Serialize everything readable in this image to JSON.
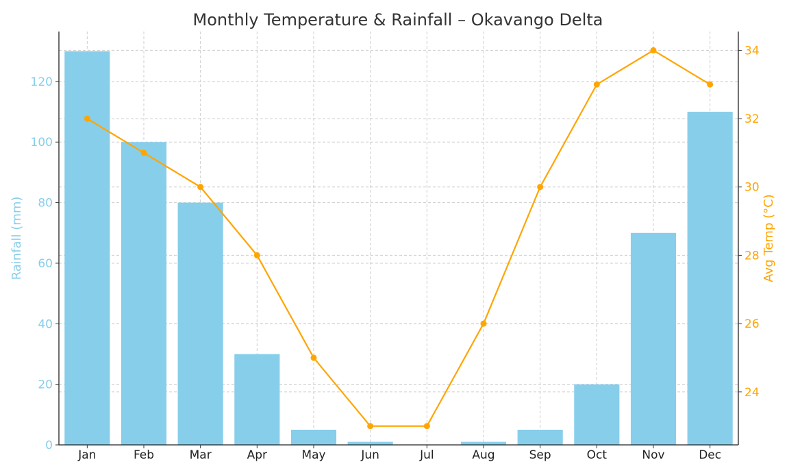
{
  "chart_data": {
    "type": "bar+line",
    "title": "Monthly Temperature & Rainfall – Okavango Delta",
    "categories": [
      "Jan",
      "Feb",
      "Mar",
      "Apr",
      "May",
      "Jun",
      "Jul",
      "Aug",
      "Sep",
      "Oct",
      "Nov",
      "Dec"
    ],
    "series": [
      {
        "name": "Rainfall (mm)",
        "type": "bar",
        "axis": "left",
        "color": "#87CEEB",
        "values": [
          130,
          100,
          80,
          30,
          5,
          1,
          0,
          1,
          5,
          20,
          70,
          110
        ]
      },
      {
        "name": "Avg Temp (°C)",
        "type": "line",
        "axis": "right",
        "color": "#FFA500",
        "values": [
          32,
          31,
          30,
          28,
          25,
          23,
          23,
          26,
          30,
          33,
          34,
          33
        ]
      }
    ],
    "ylabel_left": "Rainfall (mm)",
    "ylabel_right": "Avg Temp (°C)",
    "ylim_left": [
      0,
      136.5
    ],
    "yticks_left": [
      0,
      20,
      40,
      60,
      80,
      100,
      120
    ],
    "ylim_right": [
      22.45,
      34.55
    ],
    "yticks_right": [
      24,
      26,
      28,
      30,
      32,
      34
    ],
    "grid": true,
    "legend": "none"
  }
}
